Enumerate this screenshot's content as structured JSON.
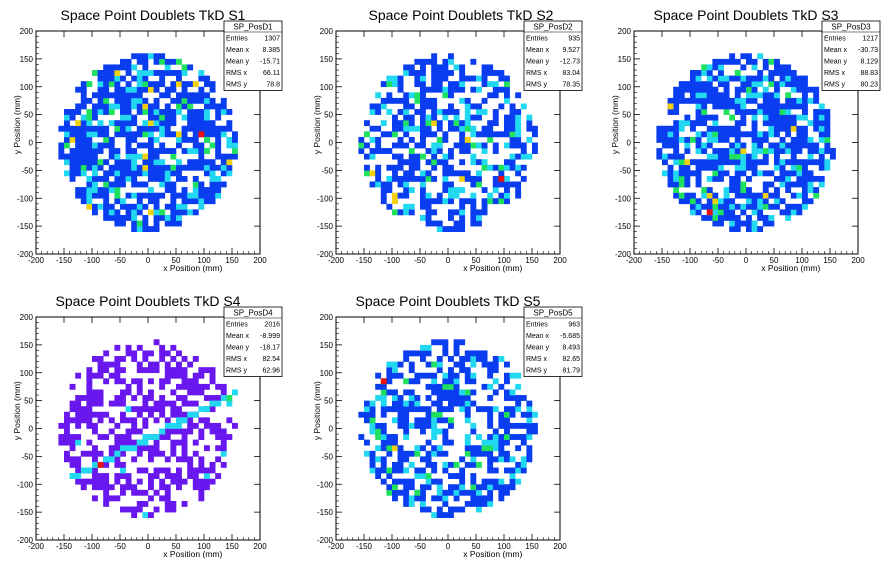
{
  "chart_data": [
    {
      "type": "heatmap",
      "title": "Space Point Doublets TkD S1",
      "xlabel": "x Position (mm)",
      "ylabel": "y Position (mm)",
      "xlim": [
        -200,
        200
      ],
      "ylim": [
        -200,
        200
      ],
      "xticks": [
        -200,
        -150,
        -100,
        -50,
        0,
        50,
        100,
        150,
        200
      ],
      "yticks": [
        -200,
        -150,
        -100,
        -50,
        0,
        50,
        100,
        150,
        200
      ],
      "stats": {
        "name": "SP_PosD1",
        "rows": [
          {
            "label": "Entries",
            "value": "1307"
          },
          {
            "label": "Mean x",
            "value": "8.385"
          },
          {
            "label": "Mean y",
            "value": "-15.71"
          },
          {
            "label": "RMS x",
            "value": "66.11"
          },
          {
            "label": "RMS y",
            "value": "78.8"
          }
        ]
      },
      "palette": [
        "#0a3cf0",
        "#22d8f0",
        "#20e060",
        "#f0d010",
        "#e81010"
      ],
      "sparsity": 0.25,
      "hot_cells": [
        {
          "x": 90,
          "y": 10,
          "level": 4
        },
        {
          "x": 100,
          "y": 0,
          "level": 2
        }
      ]
    },
    {
      "type": "heatmap",
      "title": "Space Point Doublets TkD S2",
      "xlabel": "x Position (mm)",
      "ylabel": "y Position (mm)",
      "xlim": [
        -200,
        200
      ],
      "ylim": [
        -200,
        200
      ],
      "xticks": [
        -200,
        -150,
        -100,
        -50,
        0,
        50,
        100,
        150,
        200
      ],
      "yticks": [
        -200,
        -150,
        -100,
        -50,
        0,
        50,
        100,
        150,
        200
      ],
      "stats": {
        "name": "SP_PosD2",
        "rows": [
          {
            "label": "Entries",
            "value": "935"
          },
          {
            "label": "Mean x",
            "value": "9.527"
          },
          {
            "label": "Mean y",
            "value": "-12.73"
          },
          {
            "label": "RMS x",
            "value": "83.04"
          },
          {
            "label": "RMS y",
            "value": "78.35"
          }
        ]
      },
      "palette": [
        "#0a3cf0",
        "#22d8f0",
        "#20e060",
        "#f0d010",
        "#e81010"
      ],
      "sparsity": 0.45,
      "hot_cells": [
        {
          "x": 95,
          "y": -65,
          "level": 4
        },
        {
          "x": 30,
          "y": 0,
          "level": 3
        }
      ]
    },
    {
      "type": "heatmap",
      "title": "Space Point Doublets TkD S3",
      "xlabel": "x Position (mm)",
      "ylabel": "y Position (mm)",
      "xlim": [
        -200,
        200
      ],
      "ylim": [
        -200,
        200
      ],
      "xticks": [
        -200,
        -150,
        -100,
        -50,
        0,
        50,
        100,
        150,
        200
      ],
      "yticks": [
        -200,
        -150,
        -100,
        -50,
        0,
        50,
        100,
        150,
        200
      ],
      "stats": {
        "name": "SP_PosD3",
        "rows": [
          {
            "label": "Entries",
            "value": "1217"
          },
          {
            "label": "Mean x",
            "value": "-30.73"
          },
          {
            "label": "Mean y",
            "value": "8.129"
          },
          {
            "label": "RMS x",
            "value": "88.83"
          },
          {
            "label": "RMS y",
            "value": "80.23"
          }
        ]
      },
      "palette": [
        "#0a3cf0",
        "#22d8f0",
        "#20e060",
        "#f0d010",
        "#e81010"
      ],
      "sparsity": 0.3,
      "hot_cells": [
        {
          "x": -70,
          "y": -130,
          "level": 4
        },
        {
          "x": -140,
          "y": 60,
          "level": 3
        }
      ]
    },
    {
      "type": "heatmap",
      "title": "Space Point Doublets TkD S4",
      "xlabel": "x Position (mm)",
      "ylabel": "y Position (mm)",
      "xlim": [
        -200,
        200
      ],
      "ylim": [
        -200,
        200
      ],
      "xticks": [
        -200,
        -150,
        -100,
        -50,
        0,
        50,
        100,
        150,
        200
      ],
      "yticks": [
        -200,
        -150,
        -100,
        -50,
        0,
        50,
        100,
        150,
        200
      ],
      "stats": {
        "name": "SP_PosD4",
        "rows": [
          {
            "label": "Entries",
            "value": "2016"
          },
          {
            "label": "Mean x",
            "value": "-8.999"
          },
          {
            "label": "Mean y",
            "value": "-18.17"
          },
          {
            "label": "RMS x",
            "value": "82.54"
          },
          {
            "label": "RMS y",
            "value": "62.96"
          }
        ]
      },
      "palette": [
        "#6818ee",
        "#22d8f0",
        "#20e060",
        "#f0d010",
        "#e81010"
      ],
      "sparsity": 0.5,
      "band": {
        "from": [
          -140,
          -90
        ],
        "to": [
          150,
          60
        ]
      },
      "hot_cells": [
        {
          "x": -90,
          "y": -70,
          "level": 4
        }
      ]
    },
    {
      "type": "heatmap",
      "title": "Space Point Doublets TkD S5",
      "xlabel": "x Position (mm)",
      "ylabel": "y Position (mm)",
      "xlim": [
        -200,
        200
      ],
      "ylim": [
        -200,
        200
      ],
      "xticks": [
        -200,
        -150,
        -100,
        -50,
        0,
        50,
        100,
        150,
        200
      ],
      "yticks": [
        -200,
        -150,
        -100,
        -50,
        0,
        50,
        100,
        150,
        200
      ],
      "stats": {
        "name": "SP_PosD5",
        "rows": [
          {
            "label": "Entries",
            "value": "963"
          },
          {
            "label": "Mean x",
            "value": "-5.685"
          },
          {
            "label": "Mean y",
            "value": "8.493"
          },
          {
            "label": "RMS x",
            "value": "82.65"
          },
          {
            "label": "RMS y",
            "value": "81.79"
          }
        ]
      },
      "palette": [
        "#0a3cf0",
        "#22d8f0",
        "#20e060",
        "#f0d010",
        "#e81010"
      ],
      "sparsity": 0.42,
      "hot_cells": [
        {
          "x": -115,
          "y": 80,
          "level": 4
        },
        {
          "x": -55,
          "y": -115,
          "level": 2
        }
      ]
    }
  ]
}
